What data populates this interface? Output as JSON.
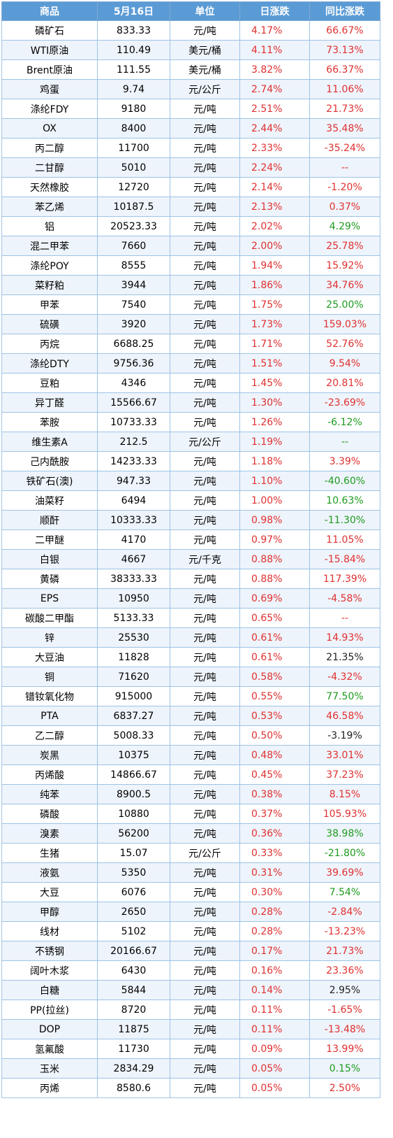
{
  "table": {
    "headers": [
      "商品",
      "5月16日",
      "单位",
      "日涨跌",
      "同比涨跌"
    ],
    "rows": [
      {
        "name": "磷矿石",
        "price": "833.33",
        "unit": "元/吨",
        "day": "4.17%",
        "yoy": "66.67%",
        "yoy_color": "red"
      },
      {
        "name": "WTI原油",
        "price": "110.49",
        "unit": "美元/桶",
        "day": "4.11%",
        "yoy": "73.13%",
        "yoy_color": "red"
      },
      {
        "name": "Brent原油",
        "price": "111.55",
        "unit": "美元/桶",
        "day": "3.82%",
        "yoy": "66.37%",
        "yoy_color": "red"
      },
      {
        "name": "鸡蛋",
        "price": "9.74",
        "unit": "元/公斤",
        "day": "2.74%",
        "yoy": "11.06%",
        "yoy_color": "red"
      },
      {
        "name": "涤纶FDY",
        "price": "9180",
        "unit": "元/吨",
        "day": "2.51%",
        "yoy": "21.73%",
        "yoy_color": "red"
      },
      {
        "name": "OX",
        "price": "8400",
        "unit": "元/吨",
        "day": "2.44%",
        "yoy": "35.48%",
        "yoy_color": "red"
      },
      {
        "name": "丙二醇",
        "price": "11700",
        "unit": "元/吨",
        "day": "2.33%",
        "yoy": "-35.24%",
        "yoy_color": "red"
      },
      {
        "name": "二甘醇",
        "price": "5010",
        "unit": "元/吨",
        "day": "2.24%",
        "yoy": "--",
        "yoy_color": "red"
      },
      {
        "name": "天然橡胶",
        "price": "12720",
        "unit": "元/吨",
        "day": "2.14%",
        "yoy": "-1.20%",
        "yoy_color": "red"
      },
      {
        "name": "苯乙烯",
        "price": "10187.5",
        "unit": "元/吨",
        "day": "2.13%",
        "yoy": "0.37%",
        "yoy_color": "red"
      },
      {
        "name": "铝",
        "price": "20523.33",
        "unit": "元/吨",
        "day": "2.02%",
        "yoy": "4.29%",
        "yoy_color": "green"
      },
      {
        "name": "混二甲苯",
        "price": "7660",
        "unit": "元/吨",
        "day": "2.00%",
        "yoy": "25.78%",
        "yoy_color": "red"
      },
      {
        "name": "涤纶POY",
        "price": "8555",
        "unit": "元/吨",
        "day": "1.94%",
        "yoy": "15.92%",
        "yoy_color": "red"
      },
      {
        "name": "菜籽粕",
        "price": "3944",
        "unit": "元/吨",
        "day": "1.86%",
        "yoy": "34.76%",
        "yoy_color": "red"
      },
      {
        "name": "甲苯",
        "price": "7540",
        "unit": "元/吨",
        "day": "1.75%",
        "yoy": "25.00%",
        "yoy_color": "green"
      },
      {
        "name": "硫磺",
        "price": "3920",
        "unit": "元/吨",
        "day": "1.73%",
        "yoy": "159.03%",
        "yoy_color": "red"
      },
      {
        "name": "丙烷",
        "price": "6688.25",
        "unit": "元/吨",
        "day": "1.71%",
        "yoy": "52.76%",
        "yoy_color": "red"
      },
      {
        "name": "涤纶DTY",
        "price": "9756.36",
        "unit": "元/吨",
        "day": "1.51%",
        "yoy": "9.54%",
        "yoy_color": "red"
      },
      {
        "name": "豆粕",
        "price": "4346",
        "unit": "元/吨",
        "day": "1.45%",
        "yoy": "20.81%",
        "yoy_color": "red"
      },
      {
        "name": "异丁醛",
        "price": "15566.67",
        "unit": "元/吨",
        "day": "1.30%",
        "yoy": "-23.69%",
        "yoy_color": "red"
      },
      {
        "name": "苯胺",
        "price": "10733.33",
        "unit": "元/吨",
        "day": "1.26%",
        "yoy": "-6.12%",
        "yoy_color": "green"
      },
      {
        "name": "维生素A",
        "price": "212.5",
        "unit": "元/公斤",
        "day": "1.19%",
        "yoy": "--",
        "yoy_color": "green"
      },
      {
        "name": "己内酰胺",
        "price": "14233.33",
        "unit": "元/吨",
        "day": "1.18%",
        "yoy": "3.39%",
        "yoy_color": "red"
      },
      {
        "name": "铁矿石(澳)",
        "price": "947.33",
        "unit": "元/吨",
        "day": "1.10%",
        "yoy": "-40.60%",
        "yoy_color": "green"
      },
      {
        "name": "油菜籽",
        "price": "6494",
        "unit": "元/吨",
        "day": "1.00%",
        "yoy": "10.63%",
        "yoy_color": "green"
      },
      {
        "name": "顺酐",
        "price": "10333.33",
        "unit": "元/吨",
        "day": "0.98%",
        "yoy": "-11.30%",
        "yoy_color": "green"
      },
      {
        "name": "二甲醚",
        "price": "4170",
        "unit": "元/吨",
        "day": "0.97%",
        "yoy": "11.05%",
        "yoy_color": "red"
      },
      {
        "name": "白银",
        "price": "4667",
        "unit": "元/千克",
        "day": "0.88%",
        "yoy": "-15.84%",
        "yoy_color": "red"
      },
      {
        "name": "黄磷",
        "price": "38333.33",
        "unit": "元/吨",
        "day": "0.88%",
        "yoy": "117.39%",
        "yoy_color": "red"
      },
      {
        "name": "EPS",
        "price": "10950",
        "unit": "元/吨",
        "day": "0.69%",
        "yoy": "-4.58%",
        "yoy_color": "red"
      },
      {
        "name": "碳酸二甲酯",
        "price": "5133.33",
        "unit": "元/吨",
        "day": "0.65%",
        "yoy": "--",
        "yoy_color": "red"
      },
      {
        "name": "锌",
        "price": "25530",
        "unit": "元/吨",
        "day": "0.61%",
        "yoy": "14.93%",
        "yoy_color": "red"
      },
      {
        "name": "大豆油",
        "price": "11828",
        "unit": "元/吨",
        "day": "0.61%",
        "yoy": "21.35%",
        "yoy_color": "black"
      },
      {
        "name": "铜",
        "price": "71620",
        "unit": "元/吨",
        "day": "0.58%",
        "yoy": "-4.32%",
        "yoy_color": "red"
      },
      {
        "name": "镨钕氧化物",
        "price": "915000",
        "unit": "元/吨",
        "day": "0.55%",
        "yoy": "77.50%",
        "yoy_color": "green"
      },
      {
        "name": "PTA",
        "price": "6837.27",
        "unit": "元/吨",
        "day": "0.53%",
        "yoy": "46.58%",
        "yoy_color": "red"
      },
      {
        "name": "乙二醇",
        "price": "5008.33",
        "unit": "元/吨",
        "day": "0.50%",
        "yoy": "-3.19%",
        "yoy_color": "black"
      },
      {
        "name": "炭黑",
        "price": "10375",
        "unit": "元/吨",
        "day": "0.48%",
        "yoy": "33.01%",
        "yoy_color": "red"
      },
      {
        "name": "丙烯酸",
        "price": "14866.67",
        "unit": "元/吨",
        "day": "0.45%",
        "yoy": "37.23%",
        "yoy_color": "red"
      },
      {
        "name": "纯苯",
        "price": "8900.5",
        "unit": "元/吨",
        "day": "0.38%",
        "yoy": "8.15%",
        "yoy_color": "red"
      },
      {
        "name": "磷酸",
        "price": "10880",
        "unit": "元/吨",
        "day": "0.37%",
        "yoy": "105.93%",
        "yoy_color": "red"
      },
      {
        "name": "溴素",
        "price": "56200",
        "unit": "元/吨",
        "day": "0.36%",
        "yoy": "38.98%",
        "yoy_color": "green"
      },
      {
        "name": "生猪",
        "price": "15.07",
        "unit": "元/公斤",
        "day": "0.33%",
        "yoy": "-21.80%",
        "yoy_color": "green"
      },
      {
        "name": "液氨",
        "price": "5350",
        "unit": "元/吨",
        "day": "0.31%",
        "yoy": "39.69%",
        "yoy_color": "red"
      },
      {
        "name": "大豆",
        "price": "6076",
        "unit": "元/吨",
        "day": "0.30%",
        "yoy": "7.54%",
        "yoy_color": "green"
      },
      {
        "name": "甲醇",
        "price": "2650",
        "unit": "元/吨",
        "day": "0.28%",
        "yoy": "-2.84%",
        "yoy_color": "red"
      },
      {
        "name": "线材",
        "price": "5102",
        "unit": "元/吨",
        "day": "0.28%",
        "yoy": "-13.23%",
        "yoy_color": "red"
      },
      {
        "name": "不锈钢",
        "price": "20166.67",
        "unit": "元/吨",
        "day": "0.17%",
        "yoy": "21.73%",
        "yoy_color": "red"
      },
      {
        "name": "阔叶木浆",
        "price": "6430",
        "unit": "元/吨",
        "day": "0.16%",
        "yoy": "23.36%",
        "yoy_color": "red"
      },
      {
        "name": "白糖",
        "price": "5844",
        "unit": "元/吨",
        "day": "0.14%",
        "yoy": "2.95%",
        "yoy_color": "black"
      },
      {
        "name": "PP(拉丝)",
        "price": "8720",
        "unit": "元/吨",
        "day": "0.11%",
        "yoy": "-1.65%",
        "yoy_color": "red"
      },
      {
        "name": "DOP",
        "price": "11875",
        "unit": "元/吨",
        "day": "0.11%",
        "yoy": "-13.48%",
        "yoy_color": "red"
      },
      {
        "name": "氢氟酸",
        "price": "11730",
        "unit": "元/吨",
        "day": "0.09%",
        "yoy": "13.99%",
        "yoy_color": "red"
      },
      {
        "name": "玉米",
        "price": "2834.29",
        "unit": "元/吨",
        "day": "0.05%",
        "yoy": "0.15%",
        "yoy_color": "green"
      },
      {
        "name": "丙烯",
        "price": "8580.6",
        "unit": "元/吨",
        "day": "0.05%",
        "yoy": "2.50%",
        "yoy_color": "red"
      }
    ]
  }
}
